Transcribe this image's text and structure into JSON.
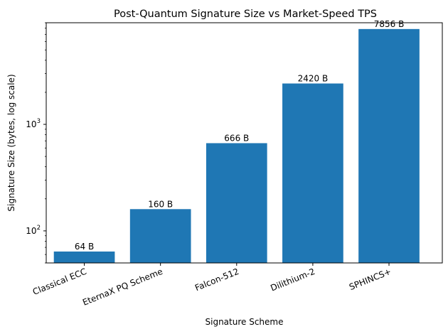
{
  "chart_data": {
    "type": "bar",
    "title": "Post-Quantum Signature Size vs Market-Speed TPS",
    "xlabel": "Signature Scheme",
    "ylabel": "Signature Size (bytes, log scale)",
    "yscale": "log",
    "ylim": [
      50,
      9000
    ],
    "ytick_labels": [
      {
        "value": 100,
        "base": "10",
        "exp": "2"
      },
      {
        "value": 1000,
        "base": "10",
        "exp": "3"
      }
    ],
    "categories": [
      "Classical ECC",
      "EternaX PQ Scheme",
      "Falcon-512",
      "Dilithium-2",
      "SPHINCS+"
    ],
    "values": [
      64,
      160,
      666,
      2420,
      7856
    ],
    "data_labels": [
      "64 B",
      "160 B",
      "666 B",
      "2420 B",
      "7856 B"
    ],
    "bar_color": "#1f77b4",
    "grid": false
  }
}
